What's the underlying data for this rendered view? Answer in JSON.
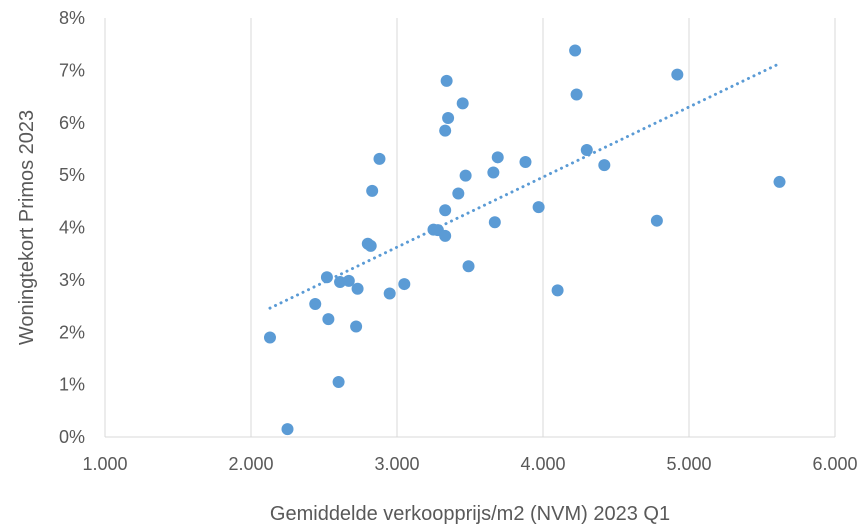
{
  "chart_data": {
    "type": "scatter",
    "xlabel": "Gemiddelde  verkoopprijs/m2  (NVM) 2023 Q1",
    "ylabel": "Woningtekort Primos 2023",
    "xlim": [
      1000,
      6000
    ],
    "ylim": [
      0,
      0.08
    ],
    "x_ticks": [
      "1.000",
      "2.000",
      "3.000",
      "4.000",
      "5.000",
      "6.000"
    ],
    "y_ticks": [
      "0%",
      "1%",
      "2%",
      "3%",
      "4%",
      "5%",
      "6%",
      "7%",
      "8%"
    ],
    "grid": "vertical",
    "point_color": "#5B9BD5",
    "trendline": {
      "type": "linear",
      "style": "dotted",
      "color": "#5B9BD5",
      "x": [
        2130,
        5620
      ],
      "y": [
        0.0246,
        0.0713
      ]
    },
    "points": [
      {
        "x": 2130,
        "y": 0.019
      },
      {
        "x": 2250,
        "y": 0.0015
      },
      {
        "x": 2440,
        "y": 0.0254
      },
      {
        "x": 2520,
        "y": 0.0305
      },
      {
        "x": 2530,
        "y": 0.0225
      },
      {
        "x": 2600,
        "y": 0.0105
      },
      {
        "x": 2610,
        "y": 0.0296
      },
      {
        "x": 2670,
        "y": 0.0298
      },
      {
        "x": 2720,
        "y": 0.0211
      },
      {
        "x": 2730,
        "y": 0.0283
      },
      {
        "x": 2800,
        "y": 0.0369
      },
      {
        "x": 2820,
        "y": 0.0365
      },
      {
        "x": 2830,
        "y": 0.047
      },
      {
        "x": 2880,
        "y": 0.0531
      },
      {
        "x": 2950,
        "y": 0.0274
      },
      {
        "x": 3050,
        "y": 0.0292
      },
      {
        "x": 3250,
        "y": 0.0396
      },
      {
        "x": 3280,
        "y": 0.0395
      },
      {
        "x": 3330,
        "y": 0.0585
      },
      {
        "x": 3330,
        "y": 0.0433
      },
      {
        "x": 3330,
        "y": 0.0384
      },
      {
        "x": 3340,
        "y": 0.068
      },
      {
        "x": 3350,
        "y": 0.0609
      },
      {
        "x": 3420,
        "y": 0.0465
      },
      {
        "x": 3450,
        "y": 0.0637
      },
      {
        "x": 3470,
        "y": 0.0499
      },
      {
        "x": 3490,
        "y": 0.0326
      },
      {
        "x": 3660,
        "y": 0.0505
      },
      {
        "x": 3670,
        "y": 0.041
      },
      {
        "x": 3690,
        "y": 0.0534
      },
      {
        "x": 3880,
        "y": 0.0525
      },
      {
        "x": 3970,
        "y": 0.0439
      },
      {
        "x": 4100,
        "y": 0.028
      },
      {
        "x": 4220,
        "y": 0.0738
      },
      {
        "x": 4230,
        "y": 0.0654
      },
      {
        "x": 4300,
        "y": 0.0548
      },
      {
        "x": 4420,
        "y": 0.0519
      },
      {
        "x": 4780,
        "y": 0.0413
      },
      {
        "x": 4920,
        "y": 0.0692
      },
      {
        "x": 5620,
        "y": 0.0487
      }
    ]
  }
}
